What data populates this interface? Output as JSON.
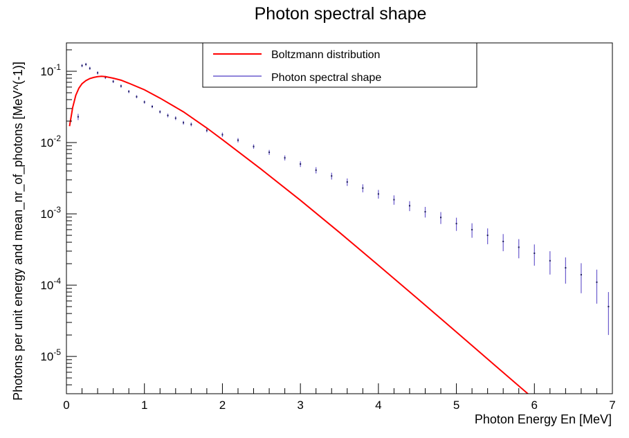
{
  "chart_data": {
    "type": "line",
    "title": "Photon spectral shape",
    "xlabel": "Photon Energy En [MeV]",
    "ylabel": "Photons per unit energy and mean_nr_of_photons [MeV^(-1)]",
    "xlim": [
      0,
      7
    ],
    "ylim": [
      3e-06,
      0.25
    ],
    "yscale": "log",
    "grid": false,
    "legend_position": "top-center",
    "x_ticks": [
      "0",
      "1",
      "2",
      "3",
      "4",
      "5",
      "6",
      "7"
    ],
    "y_ticks": [
      {
        "base": "10",
        "exp": "-5"
      },
      {
        "base": "10",
        "exp": "-4"
      },
      {
        "base": "10",
        "exp": "-3"
      },
      {
        "base": "10",
        "exp": "-2"
      },
      {
        "base": "10",
        "exp": "-1"
      }
    ],
    "series": [
      {
        "name": "Boltzmann distribution",
        "color": "#ff0000",
        "style": "line",
        "x": [
          0.04,
          0.08,
          0.12,
          0.16,
          0.2,
          0.25,
          0.3,
          0.35,
          0.4,
          0.45,
          0.5,
          0.6,
          0.7,
          0.8,
          1.0,
          1.2,
          1.5,
          1.8,
          2.0,
          2.5,
          3.0,
          3.5,
          4.0,
          4.5,
          5.0,
          5.5,
          6.0,
          6.05
        ],
        "y": [
          0.017,
          0.031,
          0.046,
          0.058,
          0.067,
          0.074,
          0.079,
          0.082,
          0.084,
          0.085,
          0.084,
          0.08,
          0.075,
          0.068,
          0.055,
          0.042,
          0.027,
          0.016,
          0.011,
          0.0042,
          0.00155,
          0.00055,
          0.00019,
          6.5e-05,
          2.2e-05,
          7.4e-06,
          2.5e-06,
          2.3e-06
        ]
      },
      {
        "name": "Photon spectral shape",
        "color": "#6a5acd",
        "style": "errorbars",
        "x": [
          0.15,
          0.2,
          0.25,
          0.3,
          0.4,
          0.5,
          0.6,
          0.7,
          0.8,
          0.9,
          1.0,
          1.1,
          1.2,
          1.3,
          1.4,
          1.5,
          1.6,
          1.8,
          2.0,
          2.2,
          2.4,
          2.6,
          2.8,
          3.0,
          3.2,
          3.4,
          3.6,
          3.8,
          4.0,
          4.2,
          4.4,
          4.6,
          4.8,
          5.0,
          5.2,
          5.4,
          5.6,
          5.8,
          6.0,
          6.2,
          6.4,
          6.6,
          6.8,
          6.95
        ],
        "y": [
          0.023,
          0.12,
          0.125,
          0.11,
          0.095,
          0.082,
          0.072,
          0.062,
          0.052,
          0.044,
          0.037,
          0.032,
          0.027,
          0.024,
          0.022,
          0.019,
          0.018,
          0.0148,
          0.0129,
          0.0108,
          0.0088,
          0.0073,
          0.0061,
          0.005,
          0.0041,
          0.0034,
          0.0028,
          0.0023,
          0.0019,
          0.00158,
          0.0013,
          0.00107,
          0.00089,
          0.00073,
          0.0006,
          0.0005,
          0.00041,
          0.00034,
          0.00028,
          0.00022,
          0.000175,
          0.00014,
          0.00011,
          5e-05
        ],
        "err": [
          0.1,
          0.05,
          0.05,
          0.05,
          0.05,
          0.05,
          0.05,
          0.05,
          0.05,
          0.05,
          0.05,
          0.05,
          0.05,
          0.06,
          0.06,
          0.06,
          0.06,
          0.06,
          0.07,
          0.07,
          0.07,
          0.08,
          0.08,
          0.09,
          0.1,
          0.11,
          0.12,
          0.13,
          0.14,
          0.15,
          0.16,
          0.17,
          0.19,
          0.21,
          0.23,
          0.25,
          0.27,
          0.3,
          0.33,
          0.36,
          0.4,
          0.45,
          0.5,
          0.6
        ]
      }
    ]
  }
}
